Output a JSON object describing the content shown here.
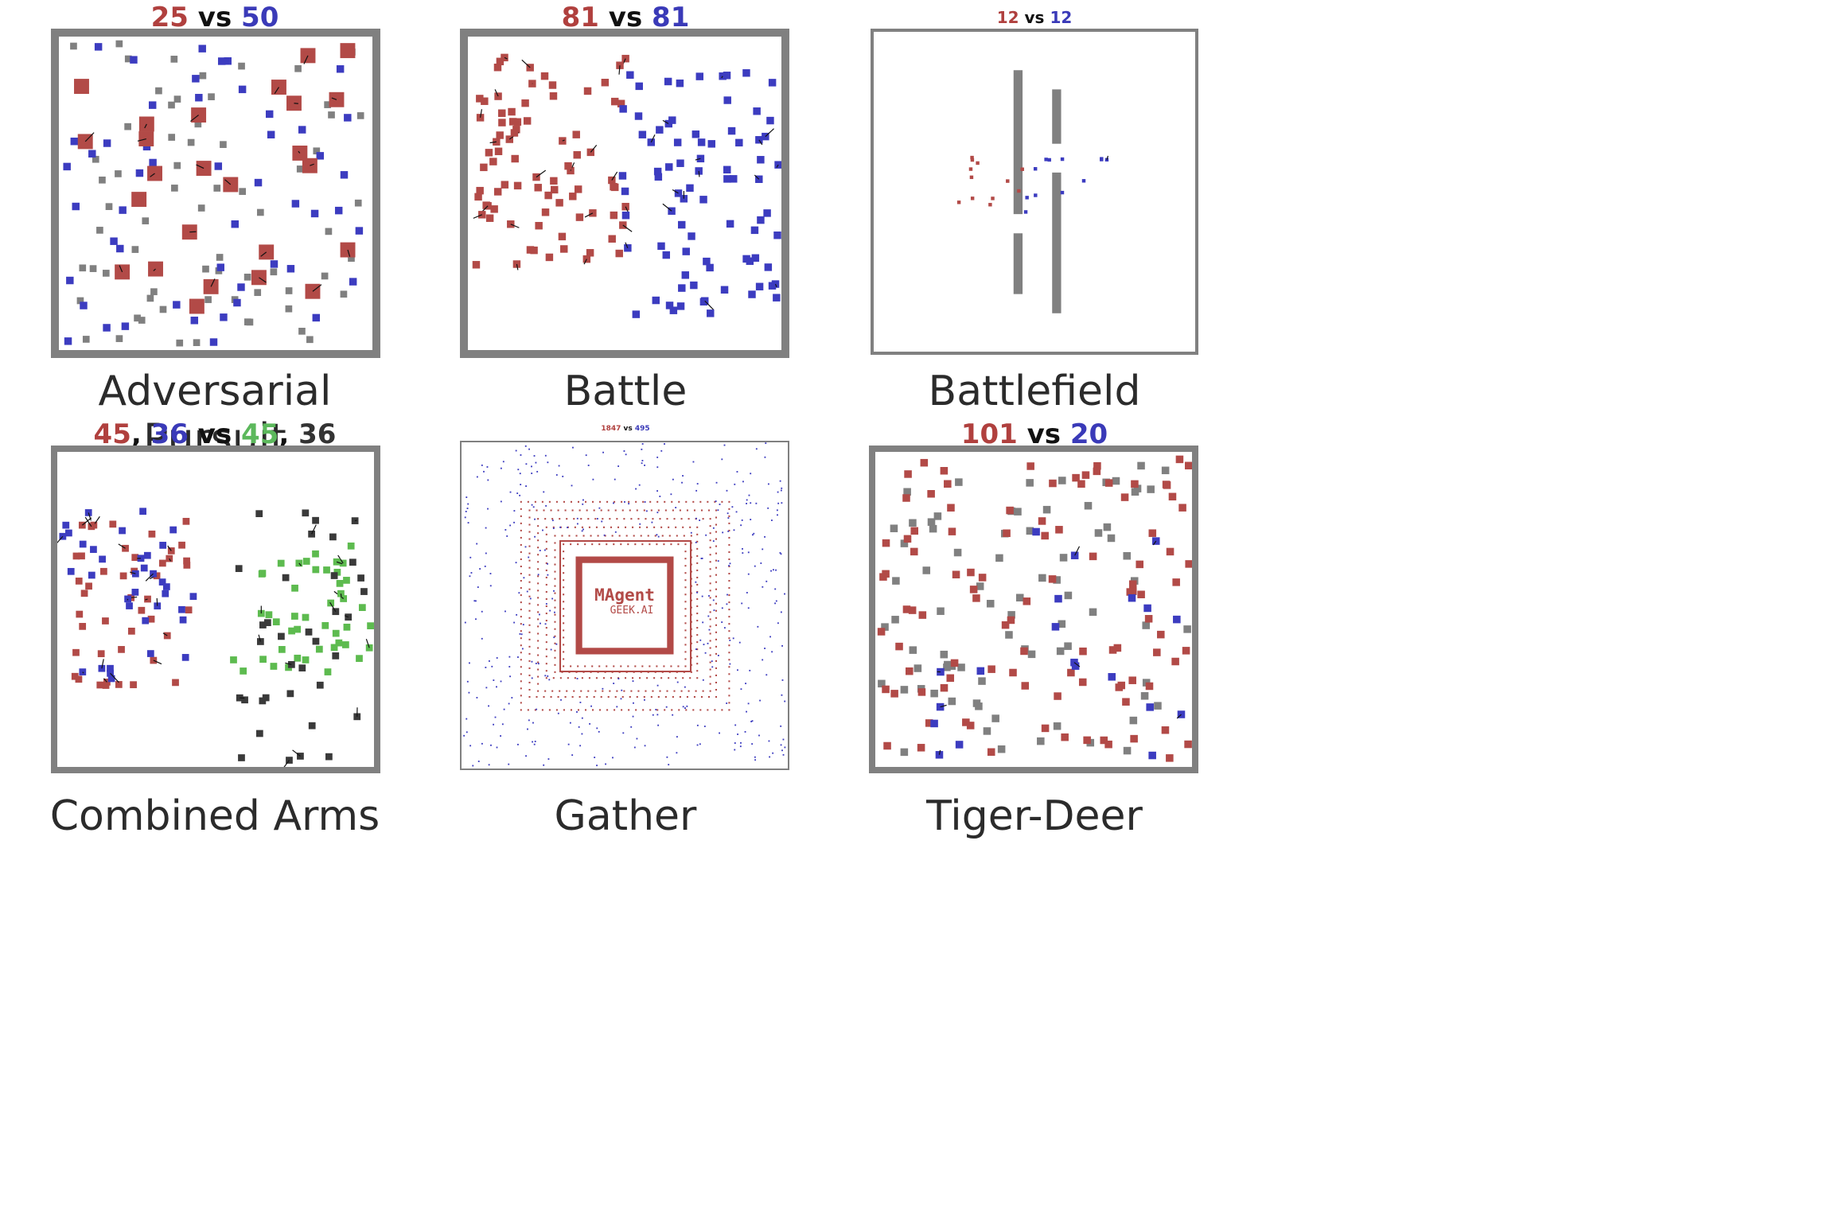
{
  "colors": {
    "red": "#b24a47",
    "blue": "#3c3cc0",
    "gray": "#808080",
    "green": "#5dbb4f",
    "dark": "#3a3a3a",
    "frame": "#808080"
  },
  "panels": [
    {
      "id": "adversarial-pursuit",
      "caption": "Adversarial Pursuit",
      "score": {
        "red": "25",
        "vs": "vs",
        "blue": "50"
      }
    },
    {
      "id": "battle",
      "caption": "Battle",
      "score": {
        "red": "81",
        "vs": "vs",
        "blue": "81"
      }
    },
    {
      "id": "battlefield",
      "caption": "Battlefield",
      "score": {
        "red": "12",
        "vs": "vs",
        "blue": "12"
      }
    },
    {
      "id": "combined-arms",
      "caption": "Combined Arms",
      "score": {
        "red": "45",
        "sep1": ",",
        "blue": "36",
        "vs": "vs",
        "green": "45",
        "sep2": ",",
        "dark": "36"
      }
    },
    {
      "id": "gather",
      "caption": "Gather",
      "score": {
        "red": "1847",
        "vs": "vs",
        "blue": "495"
      },
      "logo": {
        "title": "MAgent",
        "subtitle": "GEEK.AI"
      }
    },
    {
      "id": "tiger-deer",
      "caption": "Tiger-Deer",
      "score": {
        "red": "101",
        "vs": "vs",
        "blue": "20"
      }
    }
  ]
}
